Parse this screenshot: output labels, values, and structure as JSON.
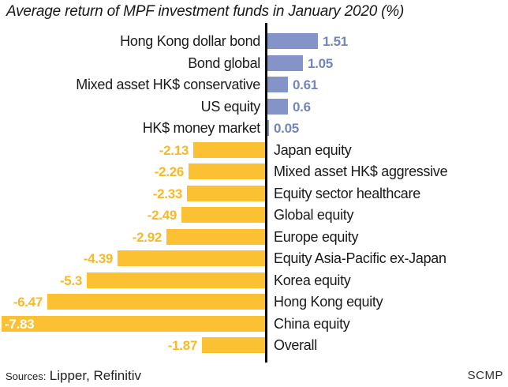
{
  "title": "Average return of MPF investment funds in January 2020 (%)",
  "footer": {
    "sources_label": "Sources:",
    "sources_value": "Lipper, Refinitiv",
    "credit": "SCMP"
  },
  "colors": {
    "positive_bar": "#8494c8",
    "positive_value_text": "#7286bd",
    "negative_bar": "#fcc033",
    "negative_value_text": "#f8b928",
    "inside_value_text": "#ffffff",
    "axis": "#0d0d0d"
  },
  "chart_data": {
    "type": "bar",
    "orientation": "horizontal",
    "title": "Average return of MPF investment funds in January 2020 (%)",
    "xlabel": "",
    "ylabel": "",
    "xlim": [
      -7.83,
      1.51
    ],
    "grid": false,
    "categories": [
      "Hong Kong dollar bond",
      "Bond global",
      "Mixed asset HK$ conservative",
      "US equity",
      "HK$ money market",
      "Japan equity",
      "Mixed asset HK$ aggressive",
      "Equity sector healthcare",
      "Global equity",
      "Europe equity",
      "Equity Asia-Pacific ex-Japan",
      "Korea equity",
      "Hong Kong equity",
      "China equity",
      "Overall"
    ],
    "values": [
      1.51,
      1.05,
      0.61,
      0.6,
      0.05,
      -2.13,
      -2.26,
      -2.33,
      -2.49,
      -2.92,
      -4.39,
      -5.3,
      -6.47,
      -7.83,
      -1.87
    ],
    "value_labels": [
      "1.51",
      "1.05",
      "0.61",
      "0.6",
      "0.05",
      "-2.13",
      "-2.26",
      "-2.33",
      "-2.49",
      "-2.92",
      "-4.39",
      "-5.3",
      "-6.47",
      "-7.83",
      "-1.87"
    ]
  }
}
